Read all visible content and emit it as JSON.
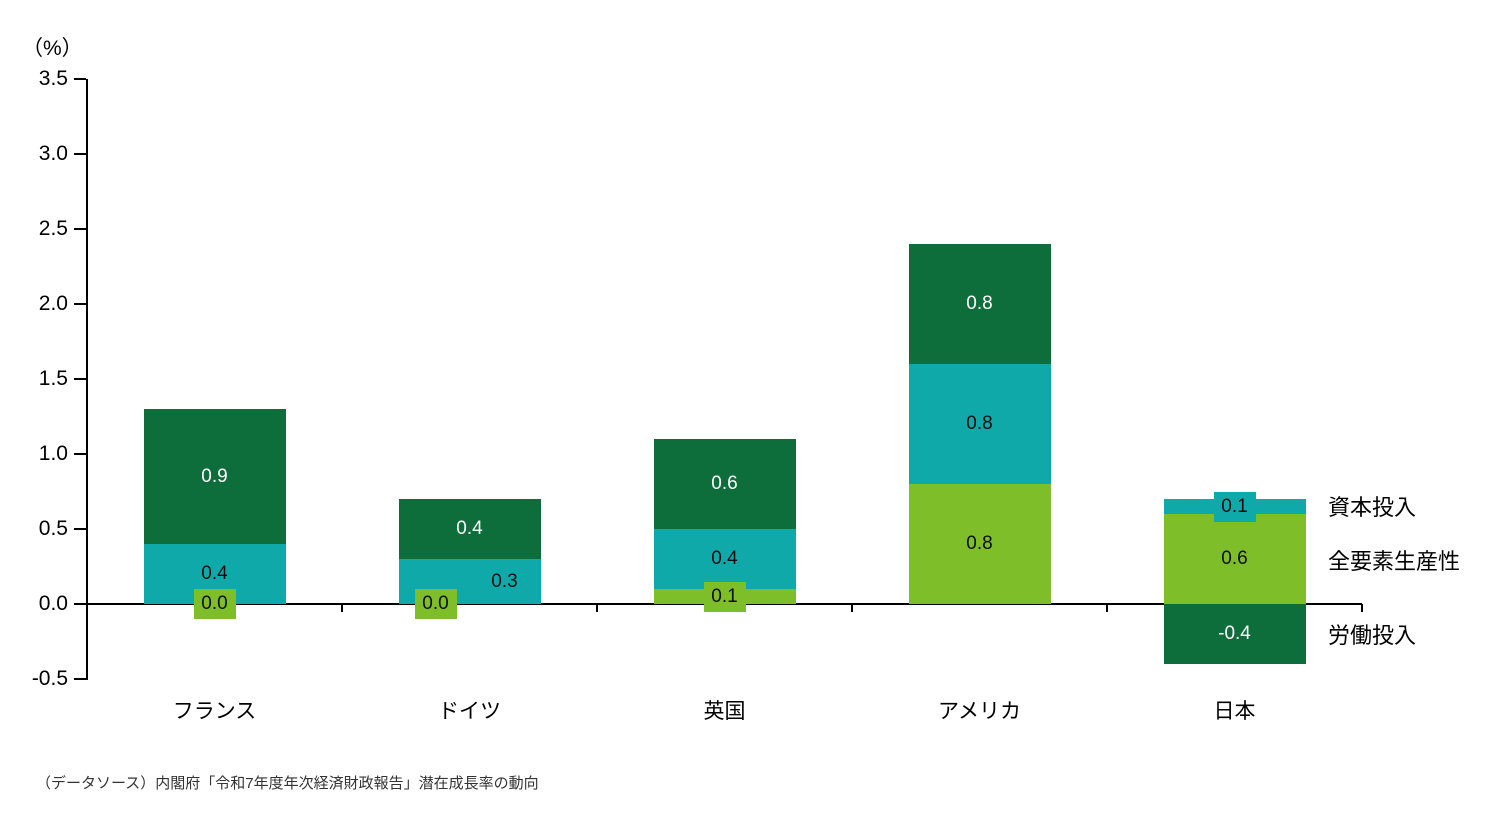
{
  "chart_data": {
    "type": "bar",
    "stacked": true,
    "title": "",
    "unit_label": "（%）",
    "categories": [
      "フランス",
      "ドイツ",
      "英国",
      "アメリカ",
      "日本"
    ],
    "series": [
      {
        "name": "全要素生産性",
        "color": "#7EBE28",
        "label_color": "#0d0d0d",
        "values": [
          0.0,
          0.0,
          0.1,
          0.8,
          0.6
        ]
      },
      {
        "name": "資本投入",
        "color": "#10A9A9",
        "label_color": "#0d0d0d",
        "values": [
          0.4,
          0.3,
          0.4,
          0.8,
          0.1
        ]
      },
      {
        "name": "労働投入",
        "color": "#0D6E3C",
        "label_color": "#ffffff",
        "values": [
          0.9,
          0.4,
          0.6,
          0.8,
          -0.4
        ]
      }
    ],
    "y_axis": {
      "min": -0.5,
      "max": 3.5,
      "step": 0.5,
      "tick_labels": [
        "3.5",
        "3.0",
        "2.5",
        "2.0",
        "1.5",
        "1.0",
        "0.5",
        "0.0",
        "-0.5"
      ]
    },
    "right_labels": [
      "資本投入",
      "全要素生産性",
      "労働投入"
    ],
    "grid": false,
    "legend_position": "right-of-last-bar",
    "source": "（データソース）内閣府「令和7年度年次経済財政報告」潜在成長率の動向"
  }
}
